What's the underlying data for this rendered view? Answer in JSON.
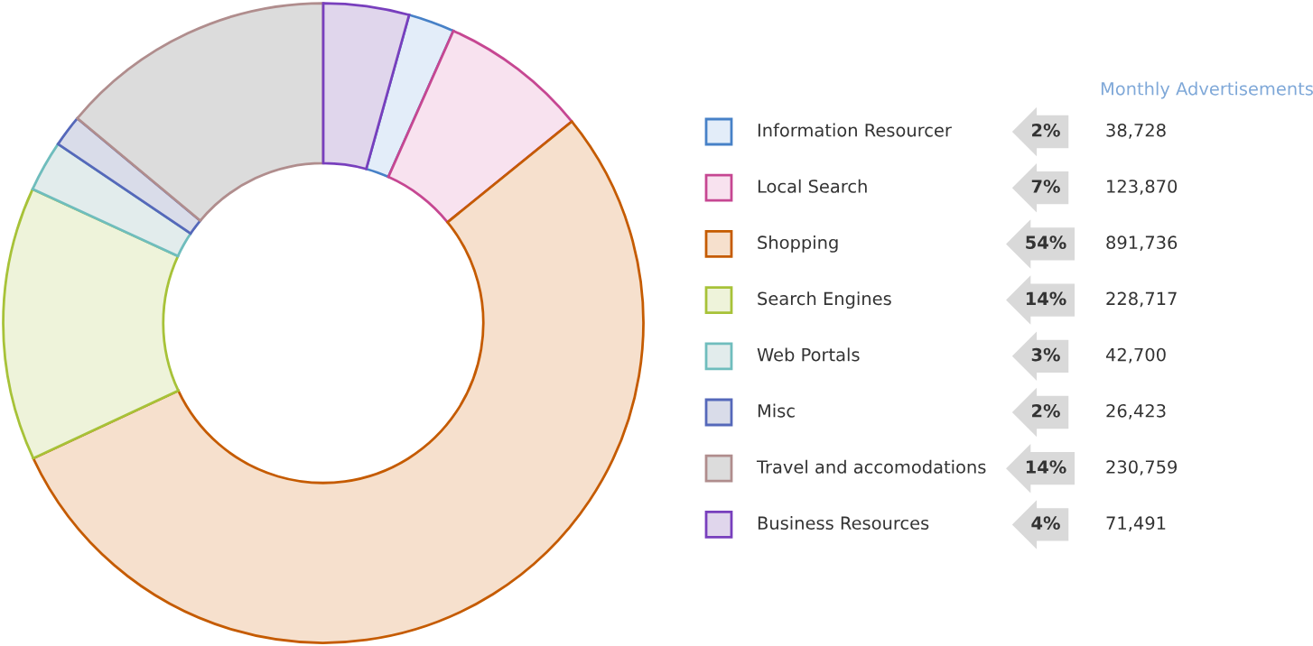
{
  "chart_data": {
    "type": "donut",
    "categories": [
      "Information Resourcer",
      "Local Search",
      "Shopping",
      "Search Engines",
      "Web Portals",
      "Misc",
      "Travel and accomodations",
      "Business Resources"
    ],
    "values": [
      38728,
      123870,
      891736,
      228717,
      42700,
      26423,
      230759,
      71491
    ],
    "value_labels": [
      "38,728",
      "123,870",
      "891,736",
      "228,717",
      "42,700",
      "26,423",
      "230,759",
      "71,491"
    ],
    "annotations": [
      "2%",
      "7%",
      "54%",
      "14%",
      "3%",
      "2%",
      "14%",
      "4%"
    ],
    "colors": [
      "#e3edf9",
      "#f8e2ef",
      "#f6e0cd",
      "#eef3da",
      "#e2ecec",
      "#d9dce9",
      "#dcdcdc",
      "#e0d6ec"
    ],
    "legend": "right",
    "legend_title": "Monthly Advertisements"
  }
}
